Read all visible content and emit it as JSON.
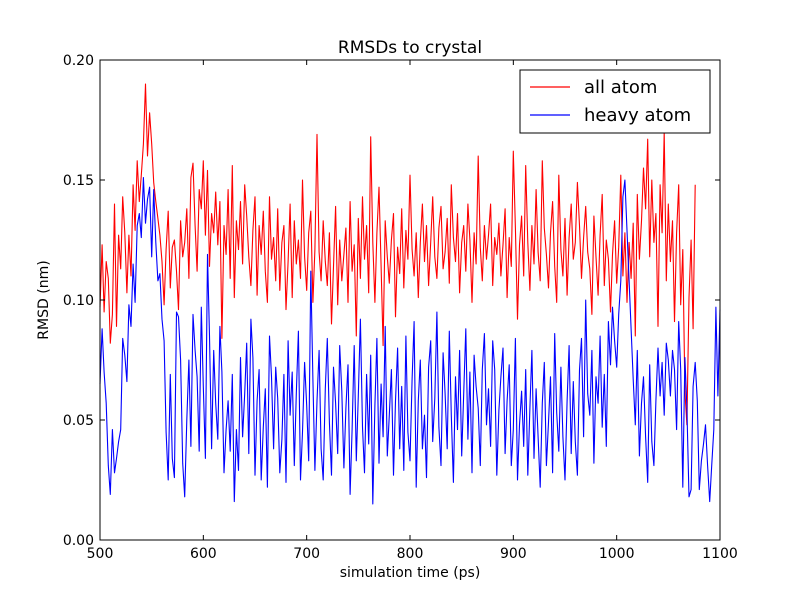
{
  "chart_data": {
    "type": "line",
    "title": "RMSDs to crystal",
    "xlabel": "simulation time (ps)",
    "ylabel": "RMSD (nm)",
    "xlim": [
      500,
      1100
    ],
    "ylim": [
      0.0,
      0.2
    ],
    "xticks": [
      "500",
      "600",
      "700",
      "800",
      "900",
      "1000",
      "1100"
    ],
    "yticks": [
      "0.00",
      "0.05",
      "0.10",
      "0.15",
      "0.20"
    ],
    "xtick_values": [
      500,
      600,
      700,
      800,
      900,
      1000,
      1100
    ],
    "ytick_values": [
      0.0,
      0.05,
      0.1,
      0.15,
      0.2
    ],
    "grid": false,
    "legend_position": "top-right",
    "x_start": 500,
    "x_step": 2,
    "series": [
      {
        "name": "all atom",
        "color": "#ff0000",
        "values": [
          0.097,
          0.123,
          0.095,
          0.116,
          0.109,
          0.082,
          0.094,
          0.14,
          0.089,
          0.127,
          0.113,
          0.143,
          0.128,
          0.103,
          0.127,
          0.11,
          0.148,
          0.129,
          0.158,
          0.141,
          0.152,
          0.165,
          0.19,
          0.16,
          0.178,
          0.165,
          0.149,
          0.141,
          0.134,
          0.127,
          0.116,
          0.098,
          0.121,
          0.137,
          0.105,
          0.122,
          0.125,
          0.112,
          0.096,
          0.133,
          0.118,
          0.124,
          0.138,
          0.109,
          0.151,
          0.157,
          0.131,
          0.112,
          0.146,
          0.138,
          0.158,
          0.127,
          0.154,
          0.114,
          0.136,
          0.128,
          0.145,
          0.123,
          0.141,
          0.084,
          0.131,
          0.119,
          0.146,
          0.109,
          0.156,
          0.101,
          0.133,
          0.121,
          0.141,
          0.115,
          0.148,
          0.135,
          0.118,
          0.106,
          0.129,
          0.143,
          0.102,
          0.131,
          0.119,
          0.137,
          0.112,
          0.099,
          0.143,
          0.117,
          0.126,
          0.108,
          0.138,
          0.104,
          0.124,
          0.131,
          0.096,
          0.116,
          0.14,
          0.101,
          0.133,
          0.115,
          0.125,
          0.109,
          0.15,
          0.118,
          0.104,
          0.128,
          0.137,
          0.099,
          0.121,
          0.169,
          0.12,
          0.108,
          0.133,
          0.116,
          0.106,
          0.128,
          0.09,
          0.114,
          0.139,
          0.098,
          0.125,
          0.108,
          0.119,
          0.13,
          0.099,
          0.141,
          0.112,
          0.123,
          0.085,
          0.134,
          0.109,
          0.143,
          0.117,
          0.131,
          0.103,
          0.168,
          0.124,
          0.099,
          0.128,
          0.147,
          0.114,
          0.081,
          0.133,
          0.118,
          0.107,
          0.125,
          0.136,
          0.093,
          0.122,
          0.111,
          0.138,
          0.105,
          0.129,
          0.117,
          0.152,
          0.121,
          0.11,
          0.128,
          0.101,
          0.124,
          0.14,
          0.116,
          0.131,
          0.106,
          0.124,
          0.143,
          0.118,
          0.109,
          0.13,
          0.139,
          0.113,
          0.12,
          0.134,
          0.107,
          0.148,
          0.126,
          0.116,
          0.136,
          0.103,
          0.124,
          0.131,
          0.112,
          0.14,
          0.125,
          0.099,
          0.128,
          0.115,
          0.16,
          0.122,
          0.108,
          0.131,
          0.117,
          0.127,
          0.14,
          0.106,
          0.126,
          0.119,
          0.132,
          0.11,
          0.123,
          0.138,
          0.101,
          0.126,
          0.114,
          0.162,
          0.13,
          0.092,
          0.123,
          0.135,
          0.11,
          0.156,
          0.124,
          0.104,
          0.131,
          0.115,
          0.146,
          0.12,
          0.108,
          0.158,
          0.13,
          0.119,
          0.105,
          0.128,
          0.141,
          0.114,
          0.099,
          0.152,
          0.121,
          0.11,
          0.134,
          0.102,
          0.126,
          0.14,
          0.117,
          0.124,
          0.149,
          0.131,
          0.109,
          0.126,
          0.139,
          0.12,
          0.113,
          0.094,
          0.135,
          0.118,
          0.102,
          0.127,
          0.144,
          0.106,
          0.125,
          0.117,
          0.095,
          0.119,
          0.133,
          0.107,
          0.122,
          0.152,
          0.11,
          0.128,
          0.099,
          0.124,
          0.109,
          0.132,
          0.085,
          0.144,
          0.117,
          0.133,
          0.155,
          0.138,
          0.167,
          0.118,
          0.15,
          0.124,
          0.136,
          0.089,
          0.148,
          0.128,
          0.17,
          0.108,
          0.14,
          0.116,
          0.133,
          0.091,
          0.128,
          0.148,
          0.098,
          0.121,
          0.062,
          0.048,
          0.101,
          0.125,
          0.088,
          0.148
        ]
      },
      {
        "name": "heavy atom",
        "color": "#0000ff",
        "values": [
          0.065,
          0.088,
          0.07,
          0.057,
          0.031,
          0.019,
          0.046,
          0.028,
          0.034,
          0.041,
          0.046,
          0.084,
          0.077,
          0.066,
          0.098,
          0.089,
          0.115,
          0.099,
          0.131,
          0.136,
          0.126,
          0.151,
          0.132,
          0.142,
          0.147,
          0.118,
          0.146,
          0.124,
          0.108,
          0.111,
          0.092,
          0.083,
          0.045,
          0.025,
          0.069,
          0.034,
          0.026,
          0.095,
          0.093,
          0.075,
          0.032,
          0.018,
          0.05,
          0.075,
          0.039,
          0.094,
          0.079,
          0.068,
          0.037,
          0.097,
          0.064,
          0.034,
          0.119,
          0.085,
          0.038,
          0.079,
          0.057,
          0.042,
          0.089,
          0.07,
          0.028,
          0.046,
          0.058,
          0.037,
          0.069,
          0.016,
          0.046,
          0.029,
          0.076,
          0.043,
          0.061,
          0.082,
          0.036,
          0.092,
          0.076,
          0.027,
          0.058,
          0.071,
          0.025,
          0.047,
          0.063,
          0.022,
          0.085,
          0.068,
          0.038,
          0.072,
          0.059,
          0.028,
          0.042,
          0.069,
          0.024,
          0.083,
          0.052,
          0.07,
          0.031,
          0.061,
          0.087,
          0.025,
          0.045,
          0.074,
          0.056,
          0.033,
          0.112,
          0.067,
          0.029,
          0.058,
          0.079,
          0.038,
          0.025,
          0.063,
          0.084,
          0.049,
          0.027,
          0.072,
          0.057,
          0.036,
          0.081,
          0.062,
          0.03,
          0.055,
          0.073,
          0.019,
          0.046,
          0.081,
          0.033,
          0.06,
          0.092,
          0.047,
          0.028,
          0.069,
          0.04,
          0.077,
          0.015,
          0.056,
          0.084,
          0.032,
          0.065,
          0.043,
          0.089,
          0.035,
          0.052,
          0.071,
          0.027,
          0.058,
          0.08,
          0.038,
          0.064,
          0.029,
          0.085,
          0.045,
          0.033,
          0.067,
          0.091,
          0.022,
          0.058,
          0.075,
          0.038,
          0.052,
          0.026,
          0.072,
          0.083,
          0.041,
          0.059,
          0.095,
          0.047,
          0.031,
          0.078,
          0.061,
          0.038,
          0.087,
          0.052,
          0.024,
          0.068,
          0.046,
          0.079,
          0.035,
          0.061,
          0.088,
          0.042,
          0.07,
          0.028,
          0.077,
          0.064,
          0.055,
          0.031,
          0.071,
          0.086,
          0.048,
          0.063,
          0.039,
          0.083,
          0.071,
          0.027,
          0.054,
          0.068,
          0.08,
          0.036,
          0.058,
          0.073,
          0.031,
          0.046,
          0.084,
          0.025,
          0.048,
          0.062,
          0.039,
          0.071,
          0.027,
          0.055,
          0.079,
          0.034,
          0.063,
          0.043,
          0.022,
          0.057,
          0.074,
          0.031,
          0.049,
          0.068,
          0.028,
          0.086,
          0.053,
          0.037,
          0.072,
          0.043,
          0.025,
          0.058,
          0.081,
          0.036,
          0.066,
          0.041,
          0.027,
          0.071,
          0.084,
          0.043,
          0.1,
          0.061,
          0.052,
          0.079,
          0.032,
          0.068,
          0.057,
          0.085,
          0.047,
          0.069,
          0.039,
          0.091,
          0.073,
          0.097,
          0.083,
          0.072,
          0.094,
          0.108,
          0.143,
          0.15,
          0.129,
          0.108,
          0.088,
          0.067,
          0.048,
          0.079,
          0.035,
          0.057,
          0.068,
          0.043,
          0.024,
          0.073,
          0.041,
          0.031,
          0.058,
          0.08,
          0.06,
          0.074,
          0.052,
          0.082,
          0.075,
          0.06,
          0.079,
          0.071,
          0.046,
          0.091,
          0.071,
          0.022,
          0.076,
          0.055,
          0.018,
          0.021,
          0.064,
          0.074,
          0.058,
          0.021,
          0.033,
          0.04,
          0.048,
          0.031,
          0.016,
          0.031,
          0.046,
          0.097,
          0.06,
          0.096
        ]
      }
    ]
  }
}
